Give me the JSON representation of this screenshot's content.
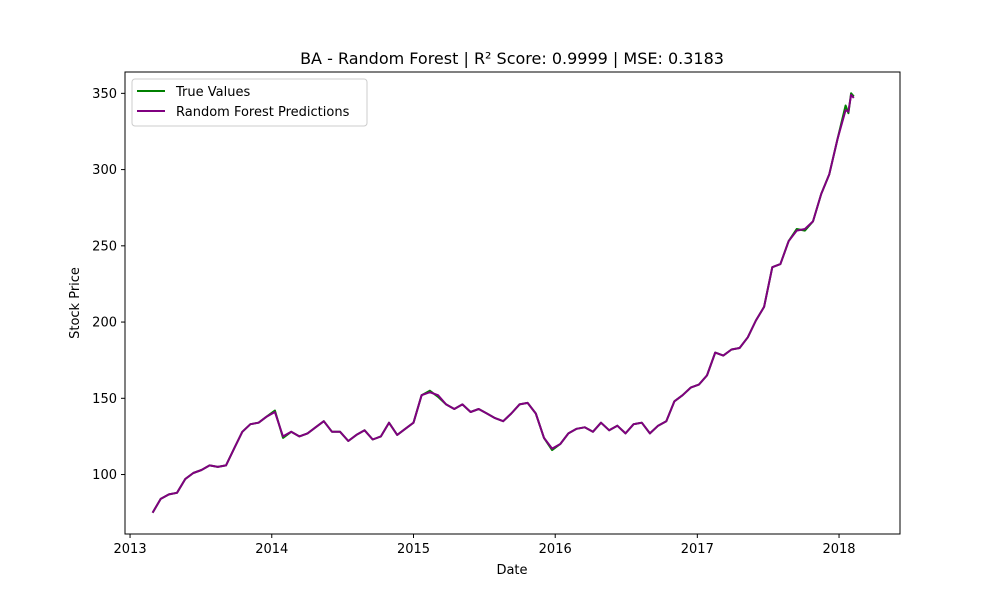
{
  "chart_data": {
    "type": "line",
    "title": "BA - Random Forest | R² Score: 0.9999 | MSE: 0.3183",
    "xlabel": "Date",
    "ylabel": "Stock Price",
    "x_ticks": [
      "2013",
      "2014",
      "2015",
      "2016",
      "2017",
      "2018"
    ],
    "y_ticks": [
      100,
      150,
      200,
      250,
      300,
      350
    ],
    "xlim": [
      "2012-12-19",
      "2018-06-07"
    ],
    "ylim": [
      61,
      364
    ],
    "grid": false,
    "legend": {
      "placement": "top-left"
    },
    "series": [
      {
        "name": "True Values",
        "color": "#008000",
        "x": [
          "2013-02-28",
          "2013-03-21",
          "2013-04-11",
          "2013-05-02",
          "2013-05-23",
          "2013-06-13",
          "2013-07-04",
          "2013-07-25",
          "2013-08-15",
          "2013-09-05",
          "2013-09-26",
          "2013-10-17",
          "2013-11-07",
          "2013-11-28",
          "2013-12-19",
          "2014-01-09",
          "2014-01-30",
          "2014-02-20",
          "2014-03-13",
          "2014-04-03",
          "2014-04-24",
          "2014-05-15",
          "2014-06-05",
          "2014-06-26",
          "2014-07-17",
          "2014-08-07",
          "2014-08-28",
          "2014-09-18",
          "2014-10-09",
          "2014-10-30",
          "2014-11-20",
          "2014-12-11",
          "2015-01-01",
          "2015-01-22",
          "2015-02-12",
          "2015-03-05",
          "2015-03-26",
          "2015-04-16",
          "2015-05-07",
          "2015-05-28",
          "2015-06-18",
          "2015-07-09",
          "2015-07-30",
          "2015-08-20",
          "2015-09-10",
          "2015-10-01",
          "2015-10-22",
          "2015-11-12",
          "2015-12-03",
          "2015-12-24",
          "2016-01-14",
          "2016-02-04",
          "2016-02-25",
          "2016-03-17",
          "2016-04-07",
          "2016-04-28",
          "2016-05-19",
          "2016-06-09",
          "2016-06-30",
          "2016-07-21",
          "2016-08-11",
          "2016-09-01",
          "2016-09-22",
          "2016-10-13",
          "2016-11-03",
          "2016-11-24",
          "2016-12-15",
          "2017-01-05",
          "2017-01-26",
          "2017-02-16",
          "2017-03-09",
          "2017-03-30",
          "2017-04-20",
          "2017-05-11",
          "2017-06-01",
          "2017-06-22",
          "2017-07-13",
          "2017-08-03",
          "2017-08-24",
          "2017-09-14",
          "2017-10-05",
          "2017-10-26",
          "2017-11-16",
          "2017-12-07",
          "2017-12-28",
          "2018-01-18",
          "2018-01-25",
          "2018-02-01",
          "2018-02-08"
        ],
        "values": [
          75,
          84,
          87,
          88,
          97,
          101,
          103,
          106,
          105,
          106,
          117,
          128,
          133,
          134,
          138,
          142,
          124,
          128,
          125,
          127,
          131,
          135,
          128,
          128,
          122,
          126,
          129,
          123,
          125,
          134,
          126,
          130,
          134,
          152,
          155,
          151,
          146,
          143,
          146,
          141,
          143,
          140,
          137,
          135,
          140,
          146,
          147,
          140,
          124,
          116,
          120,
          127,
          130,
          131,
          128,
          134,
          129,
          132,
          127,
          133,
          134,
          127,
          132,
          135,
          148,
          152,
          157,
          159,
          165,
          180,
          178,
          182,
          183,
          190,
          201,
          210,
          236,
          238,
          253,
          261,
          260,
          266,
          284,
          297,
          320,
          342,
          337,
          350,
          348
        ]
      },
      {
        "name": "Random Forest Predictions",
        "color": "#800080",
        "x": [
          "2013-02-28",
          "2013-03-21",
          "2013-04-11",
          "2013-05-02",
          "2013-05-23",
          "2013-06-13",
          "2013-07-04",
          "2013-07-25",
          "2013-08-15",
          "2013-09-05",
          "2013-09-26",
          "2013-10-17",
          "2013-11-07",
          "2013-11-28",
          "2013-12-19",
          "2014-01-09",
          "2014-01-30",
          "2014-02-20",
          "2014-03-13",
          "2014-04-03",
          "2014-04-24",
          "2014-05-15",
          "2014-06-05",
          "2014-06-26",
          "2014-07-17",
          "2014-08-07",
          "2014-08-28",
          "2014-09-18",
          "2014-10-09",
          "2014-10-30",
          "2014-11-20",
          "2014-12-11",
          "2015-01-01",
          "2015-01-22",
          "2015-02-12",
          "2015-03-05",
          "2015-03-26",
          "2015-04-16",
          "2015-05-07",
          "2015-05-28",
          "2015-06-18",
          "2015-07-09",
          "2015-07-30",
          "2015-08-20",
          "2015-09-10",
          "2015-10-01",
          "2015-10-22",
          "2015-11-12",
          "2015-12-03",
          "2015-12-24",
          "2016-01-14",
          "2016-02-04",
          "2016-02-25",
          "2016-03-17",
          "2016-04-07",
          "2016-04-28",
          "2016-05-19",
          "2016-06-09",
          "2016-06-30",
          "2016-07-21",
          "2016-08-11",
          "2016-09-01",
          "2016-09-22",
          "2016-10-13",
          "2016-11-03",
          "2016-11-24",
          "2016-12-15",
          "2017-01-05",
          "2017-01-26",
          "2017-02-16",
          "2017-03-09",
          "2017-03-30",
          "2017-04-20",
          "2017-05-11",
          "2017-06-01",
          "2017-06-22",
          "2017-07-13",
          "2017-08-03",
          "2017-08-24",
          "2017-09-14",
          "2017-10-05",
          "2017-10-26",
          "2017-11-16",
          "2017-12-07",
          "2017-12-28",
          "2018-01-18",
          "2018-01-25",
          "2018-02-01",
          "2018-02-08"
        ],
        "values": [
          75,
          84,
          87,
          88,
          97,
          101,
          103,
          106,
          105,
          106,
          117,
          128,
          133,
          134,
          138,
          141,
          125,
          128,
          125,
          127,
          131,
          135,
          128,
          128,
          122,
          126,
          129,
          123,
          125,
          134,
          126,
          130,
          134,
          152,
          154,
          152,
          146,
          143,
          146,
          141,
          143,
          140,
          137,
          135,
          140,
          146,
          147,
          140,
          124,
          117,
          120,
          127,
          130,
          131,
          128,
          134,
          129,
          132,
          127,
          133,
          134,
          127,
          132,
          135,
          148,
          152,
          157,
          159,
          165,
          180,
          178,
          182,
          183,
          190,
          201,
          210,
          236,
          238,
          253,
          260,
          261,
          266,
          284,
          297,
          320,
          339,
          338,
          349,
          347
        ]
      }
    ]
  }
}
